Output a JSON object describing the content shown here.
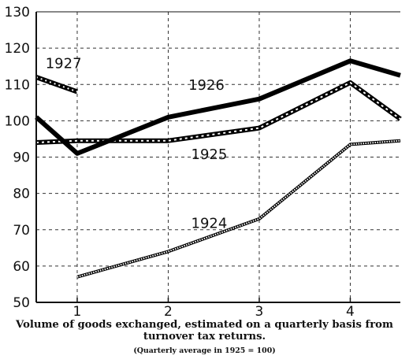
{
  "chart_data": {
    "type": "line",
    "x": [
      0.55,
      1,
      2,
      3,
      4,
      4.55
    ],
    "categories": [
      "1",
      "2",
      "3",
      "4"
    ],
    "ylim": [
      50,
      130
    ],
    "xlim": [
      0.55,
      4.55
    ],
    "yticks": [
      50,
      60,
      70,
      80,
      90,
      100,
      110,
      120,
      130
    ],
    "grid": true,
    "series": [
      {
        "name": "1924",
        "style": "hatched-thin",
        "points": [
          [
            1,
            57
          ],
          [
            2,
            64
          ],
          [
            3,
            73
          ],
          [
            4,
            93.5
          ],
          [
            4.55,
            94.5
          ]
        ]
      },
      {
        "name": "1925",
        "style": "dashed-bold",
        "points": [
          [
            0.55,
            94
          ],
          [
            1,
            94.5
          ],
          [
            2,
            94.5
          ],
          [
            3,
            98
          ],
          [
            4,
            110.5
          ],
          [
            4.55,
            100.5
          ]
        ]
      },
      {
        "name": "1926",
        "style": "solid-bold",
        "points": [
          [
            0.55,
            101
          ],
          [
            1,
            91
          ],
          [
            2,
            101
          ],
          [
            3,
            106
          ],
          [
            4,
            116.5
          ],
          [
            4.55,
            112.5
          ]
        ]
      },
      {
        "name": "1927",
        "style": "dotted-bold",
        "points": [
          [
            0.55,
            112
          ],
          [
            1,
            108
          ]
        ]
      }
    ]
  },
  "caption": {
    "line1": "Volume of goods exchanged, estimated on a quarterly basis from",
    "line2": "turnover tax returns.",
    "note": "(Quarterly average in 1925 = 100)"
  }
}
